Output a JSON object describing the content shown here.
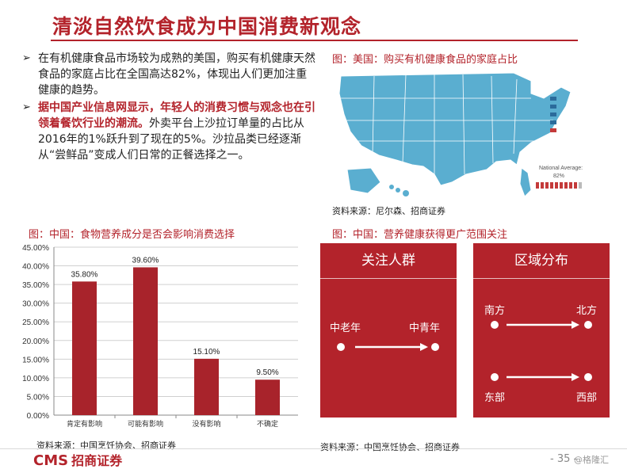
{
  "slide": {
    "title": "清淡自然饮食成为中国消费新观念",
    "bullet1": "在有机健康食品市场较为成熟的美国，购买有机健康天然食品的家庭占比在全国高达82%，体现出人们更加注重健康的趋势。",
    "bullet2_red": "据中国产业信息网显示，年轻人的消费习惯与观念也在引领着餐饮行业的潮流。",
    "bullet2_rest": "外卖平台上沙拉订单量的占比从2016年的1%跃升到了现在的5%。沙拉品类已经逐渐从“尝鲜品”变成人们日常的正餐选择之一。",
    "bullet_mark": "➢"
  },
  "map": {
    "caption": "图：美国：购买有机健康食品的家庭占比",
    "national_average_label": "National Average:",
    "national_average_value": "82%",
    "source": "资料来源：尼尔森、招商证券"
  },
  "chart_data": {
    "type": "bar",
    "title": "图：中国：食物营养成分是否会影响消费选择",
    "categories": [
      "肯定有影响",
      "可能有影响",
      "没有影响",
      "不确定"
    ],
    "values": [
      35.8,
      39.6,
      15.1,
      9.5
    ],
    "value_labels": [
      "35.80%",
      "39.60%",
      "15.10%",
      "9.50%"
    ],
    "ylim": [
      0,
      45
    ],
    "y_ticks": [
      "0.00%",
      "5.00%",
      "10.00%",
      "15.00%",
      "20.00%",
      "25.00%",
      "30.00%",
      "35.00%",
      "40.00%",
      "45.00%"
    ],
    "grid": true,
    "color": "#a8232b",
    "source": "资料来源：中国烹饪协会、招商证券"
  },
  "infographic": {
    "caption": "图：中国：营养健康获得更广范围关注",
    "panel1": {
      "title": "关注人群",
      "from": "中老年",
      "to": "中青年"
    },
    "panel2": {
      "title": "区域分布",
      "row1_from": "南方",
      "row1_to": "北方",
      "row2_from": "东部",
      "row2_to": "西部"
    },
    "source": "资料来源：中国烹饪协会、招商证券",
    "color": "#b3232b"
  },
  "footer": {
    "logo": "CMS",
    "logo_cn": "招商证券",
    "page": "- 35 -",
    "watermark": "@格隆汇"
  }
}
